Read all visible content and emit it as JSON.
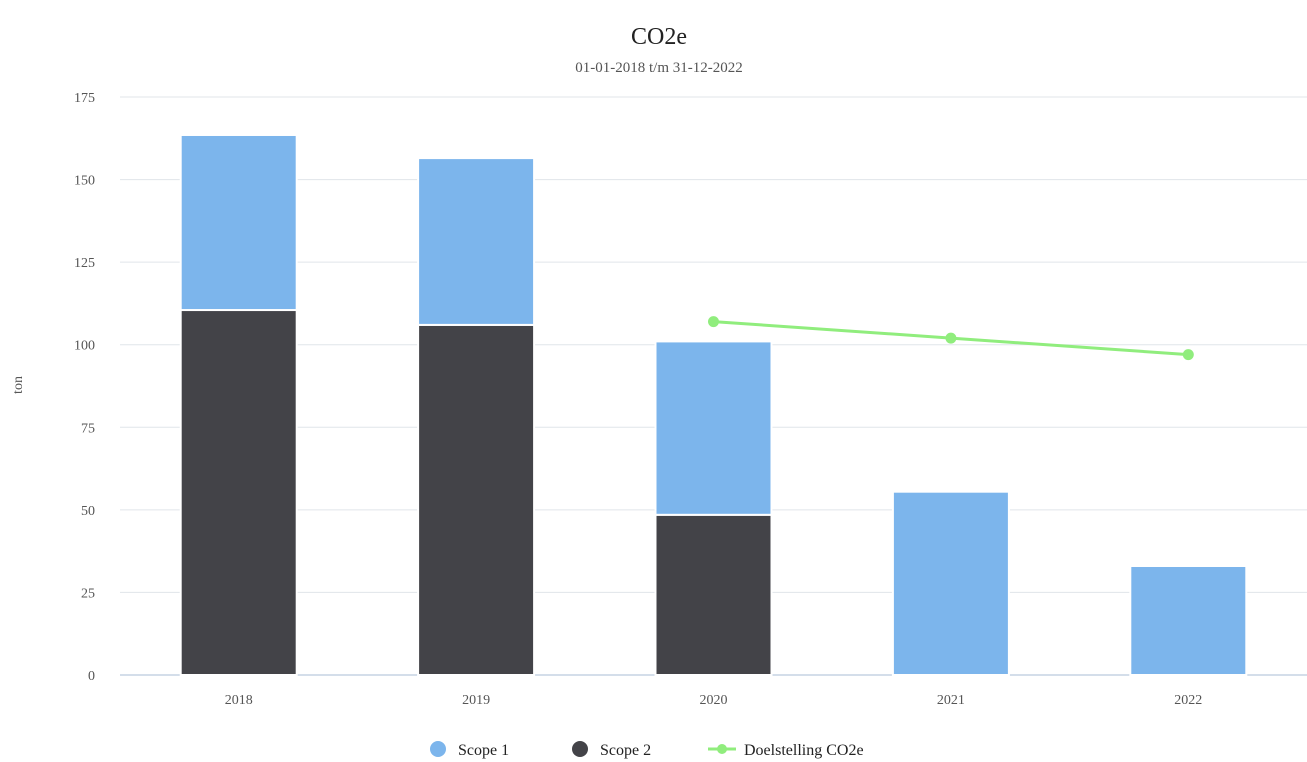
{
  "chart_data": {
    "type": "bar",
    "stacked": true,
    "title": "CO2e",
    "subtitle": "01-01-2018 t/m 31-12-2022",
    "xlabel": "",
    "ylabel": "ton",
    "categories": [
      "2018",
      "2019",
      "2020",
      "2021",
      "2022"
    ],
    "ylim": [
      0,
      175
    ],
    "yticks": [
      0,
      25,
      50,
      75,
      100,
      125,
      150,
      175
    ],
    "grid": true,
    "legend_position": "bottom-center",
    "series": [
      {
        "name": "Scope 2",
        "kind": "bar",
        "color": "#434348",
        "values": [
          110.5,
          106,
          48.5,
          0,
          0
        ]
      },
      {
        "name": "Scope 1",
        "kind": "bar",
        "color": "#7cb5ec",
        "values": [
          53,
          50.5,
          52.5,
          55.5,
          33
        ]
      },
      {
        "name": "Doelstelling CO2e",
        "kind": "line",
        "color": "#90ed7d",
        "values": [
          null,
          null,
          107,
          102,
          97
        ]
      }
    ],
    "legend": [
      {
        "label": "Scope 1",
        "series": "Scope 1",
        "symbol": "circle",
        "color": "#7cb5ec"
      },
      {
        "label": "Scope 2",
        "series": "Scope 2",
        "symbol": "circle",
        "color": "#434348"
      },
      {
        "label": "Doelstelling CO2e",
        "series": "Doelstelling CO2e",
        "symbol": "line-marker",
        "color": "#90ed7d"
      }
    ]
  }
}
